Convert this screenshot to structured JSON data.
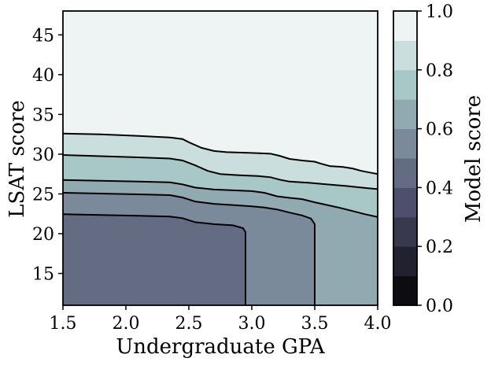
{
  "chart_data": {
    "type": "contour",
    "title": "",
    "xlabel": "Undergraduate GPA",
    "ylabel": "LSAT score",
    "colorbar_label": "Model score",
    "colormap": "bone",
    "grid": false,
    "xlim": [
      1.5,
      4.0
    ],
    "ylim": [
      11,
      48
    ],
    "x_tick_values": [
      1.5,
      2.0,
      2.5,
      3.0,
      3.5,
      4.0
    ],
    "x_tick_labels": [
      "1.5",
      "2.0",
      "2.5",
      "3.0",
      "3.5",
      "4.0"
    ],
    "y_tick_values": [
      15,
      20,
      25,
      30,
      35,
      40,
      45
    ],
    "y_tick_labels": [
      "15",
      "20",
      "25",
      "30",
      "35",
      "40",
      "45"
    ],
    "colorbar_tick_values": [
      0.0,
      0.2,
      0.4,
      0.6,
      0.8,
      1.0
    ],
    "colorbar_tick_labels": [
      "0.0",
      "0.2",
      "0.4",
      "0.6",
      "0.8",
      "1.0"
    ],
    "colorbar_range": [
      0.0,
      1.0
    ],
    "band_colors": [
      "#0c0c11",
      "#21212f",
      "#38384e",
      "#4e4e6d",
      "#646c84",
      "#7b8a9b",
      "#91a9b1",
      "#a8c7c7",
      "#cbdede",
      "#eef4f4"
    ],
    "line_color": "#000000",
    "background_band_index": 9,
    "levels": [
      0.5,
      0.6,
      0.7,
      0.8,
      0.9
    ],
    "contours": [
      {
        "level": 0.9,
        "points": [
          [
            1.5,
            32.6
          ],
          [
            1.8,
            32.5
          ],
          [
            2.1,
            32.3
          ],
          [
            2.35,
            32.1
          ],
          [
            2.45,
            31.9
          ],
          [
            2.5,
            31.5
          ],
          [
            2.6,
            30.8
          ],
          [
            2.7,
            30.4
          ],
          [
            2.8,
            30.25
          ],
          [
            3.0,
            30.15
          ],
          [
            3.15,
            30.05
          ],
          [
            3.22,
            29.8
          ],
          [
            3.3,
            29.4
          ],
          [
            3.4,
            29.2
          ],
          [
            3.5,
            29.05
          ],
          [
            3.55,
            28.8
          ],
          [
            3.62,
            28.5
          ],
          [
            3.72,
            28.4
          ],
          [
            3.8,
            28.2
          ],
          [
            3.87,
            27.9
          ],
          [
            3.95,
            27.65
          ],
          [
            4.0,
            27.5
          ]
        ]
      },
      {
        "level": 0.8,
        "points": [
          [
            1.5,
            29.9
          ],
          [
            1.8,
            29.75
          ],
          [
            2.1,
            29.6
          ],
          [
            2.35,
            29.45
          ],
          [
            2.45,
            29.2
          ],
          [
            2.55,
            28.6
          ],
          [
            2.65,
            27.9
          ],
          [
            2.75,
            27.5
          ],
          [
            2.9,
            27.35
          ],
          [
            3.05,
            27.25
          ],
          [
            3.15,
            27.1
          ],
          [
            3.22,
            26.8
          ],
          [
            3.3,
            26.55
          ],
          [
            3.45,
            26.4
          ],
          [
            3.6,
            26.2
          ],
          [
            3.75,
            26.0
          ],
          [
            3.9,
            25.75
          ],
          [
            4.0,
            25.6
          ]
        ]
      },
      {
        "level": 0.7,
        "points": [
          [
            1.5,
            26.75
          ],
          [
            1.8,
            26.65
          ],
          [
            2.1,
            26.55
          ],
          [
            2.35,
            26.45
          ],
          [
            2.45,
            26.2
          ],
          [
            2.55,
            25.8
          ],
          [
            2.7,
            25.55
          ],
          [
            2.85,
            25.45
          ],
          [
            3.0,
            25.35
          ],
          [
            3.1,
            25.15
          ],
          [
            3.2,
            24.7
          ],
          [
            3.3,
            24.5
          ],
          [
            3.4,
            24.35
          ],
          [
            3.5,
            23.95
          ],
          [
            3.6,
            23.6
          ],
          [
            3.7,
            23.25
          ],
          [
            3.8,
            22.85
          ],
          [
            3.9,
            22.45
          ],
          [
            4.0,
            22.1
          ]
        ]
      },
      {
        "level": 0.6,
        "points": [
          [
            1.5,
            25.15
          ],
          [
            1.8,
            25.05
          ],
          [
            2.1,
            24.95
          ],
          [
            2.35,
            24.85
          ],
          [
            2.45,
            24.55
          ],
          [
            2.55,
            24.05
          ],
          [
            2.7,
            23.75
          ],
          [
            2.85,
            23.6
          ],
          [
            3.0,
            23.45
          ],
          [
            3.1,
            23.3
          ],
          [
            3.2,
            23.05
          ],
          [
            3.3,
            22.65
          ],
          [
            3.4,
            22.3
          ],
          [
            3.47,
            21.9
          ],
          [
            3.5,
            21.2
          ],
          [
            3.5,
            11.0
          ]
        ]
      },
      {
        "level": 0.5,
        "points": [
          [
            1.5,
            22.45
          ],
          [
            1.8,
            22.35
          ],
          [
            2.1,
            22.25
          ],
          [
            2.35,
            22.15
          ],
          [
            2.45,
            21.95
          ],
          [
            2.55,
            21.45
          ],
          [
            2.7,
            21.2
          ],
          [
            2.85,
            21.05
          ],
          [
            2.93,
            20.7
          ],
          [
            2.95,
            20.2
          ],
          [
            2.95,
            11.0
          ]
        ]
      }
    ]
  }
}
